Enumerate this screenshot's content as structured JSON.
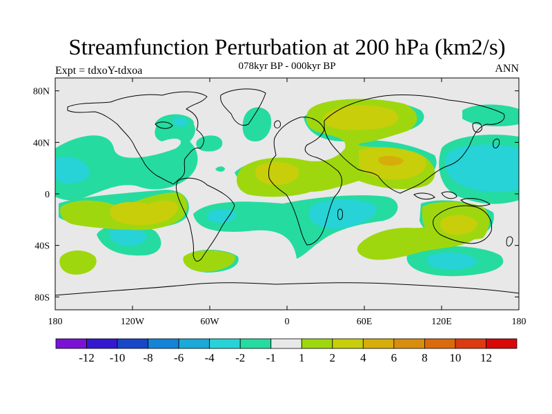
{
  "header": {
    "title": "Streamfunction Perturbation at 200 hPa (km2/s)",
    "subtitle": "078kyr BP - 000kyr BP",
    "left_label": "Expt = tdxoY-tdxoa",
    "right_label": "ANN"
  },
  "map": {
    "projection": "cylindrical equidistant",
    "lon_range": [
      -180,
      180
    ],
    "lat_range": [
      -90,
      90
    ],
    "background_color": "#e8e8e8",
    "x_ticks": [
      "180",
      "120W",
      "60W",
      "0",
      "60E",
      "120E",
      "180"
    ],
    "y_ticks": [
      "80N",
      "40N",
      "0",
      "40S",
      "80S"
    ]
  },
  "colorbar": {
    "colors": [
      "#7a12d6",
      "#3318cf",
      "#1747c8",
      "#1383d8",
      "#1aa9d9",
      "#27d3d6",
      "#25dba0",
      "#e8e8e8",
      "#9fd70f",
      "#c8ce0a",
      "#d6ad0a",
      "#d98d0d",
      "#db6a0c",
      "#dc3b10",
      "#d80808"
    ],
    "labels": [
      "-12",
      "-10",
      "-8",
      "-6",
      "-4",
      "-2",
      "-1",
      "1",
      "2",
      "4",
      "6",
      "8",
      "10",
      "12"
    ]
  },
  "field_levels": {
    "neg4": "#27d3d6",
    "neg2": "#25dba0",
    "zero": "#e8e8e8",
    "pos2": "#9fd70f",
    "pos4": "#c8ce0a",
    "pos6": "#d6ad0a"
  }
}
